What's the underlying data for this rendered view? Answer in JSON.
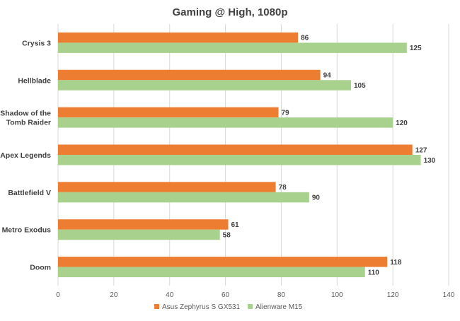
{
  "chart_data": {
    "type": "bar",
    "orientation": "horizontal",
    "title": "Gaming @ High, 1080p",
    "categories": [
      "Crysis 3",
      "Hellblade",
      "Shadow of the Tomb Raider",
      "Apex Legends",
      "Battlefield V",
      "Metro Exodus",
      "Doom"
    ],
    "category_lines": [
      [
        "Crysis 3"
      ],
      [
        "Hellblade"
      ],
      [
        "Shadow of the",
        "Tomb Raider"
      ],
      [
        "Apex Legends"
      ],
      [
        "Battlefield V"
      ],
      [
        "Metro Exodus"
      ],
      [
        "Doom"
      ]
    ],
    "series": [
      {
        "name": "Asus Zephyrus S GX531",
        "color": "#ED7D31",
        "values": [
          86,
          94,
          79,
          127,
          78,
          61,
          118
        ]
      },
      {
        "name": "Alienware M15",
        "color": "#A9D18E",
        "values": [
          125,
          105,
          120,
          130,
          90,
          58,
          110
        ]
      }
    ],
    "xlim": [
      0,
      140
    ],
    "xticks": [
      0,
      20,
      40,
      60,
      80,
      100,
      120,
      140
    ],
    "grid": true,
    "data_labels": true,
    "legend_position": "bottom"
  }
}
